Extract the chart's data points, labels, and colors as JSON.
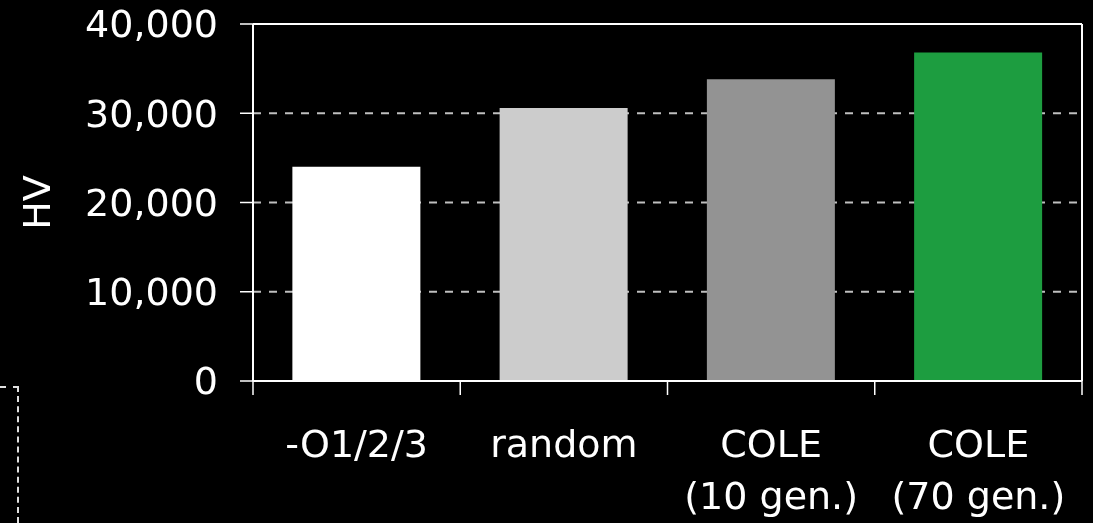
{
  "chart_data": {
    "type": "bar",
    "ylabel": "HV",
    "categories": [
      "-O1/2/3",
      "random",
      "COLE\n(10 gen.)",
      "COLE\n(70 gen.)"
    ],
    "values": [
      24000,
      30600,
      33800,
      36800
    ],
    "colors": [
      "#ffffff",
      "#cccccc",
      "#939393",
      "#1d9d40"
    ],
    "ylim": [
      0,
      40000
    ],
    "yticks": [
      0,
      {
        "value": 10000,
        "label": "10,000"
      },
      {
        "value": 20000,
        "label": "20,000"
      },
      {
        "value": 30000,
        "label": "30,000"
      },
      {
        "value": 40000,
        "label": "40,000"
      }
    ],
    "grid": "y"
  }
}
